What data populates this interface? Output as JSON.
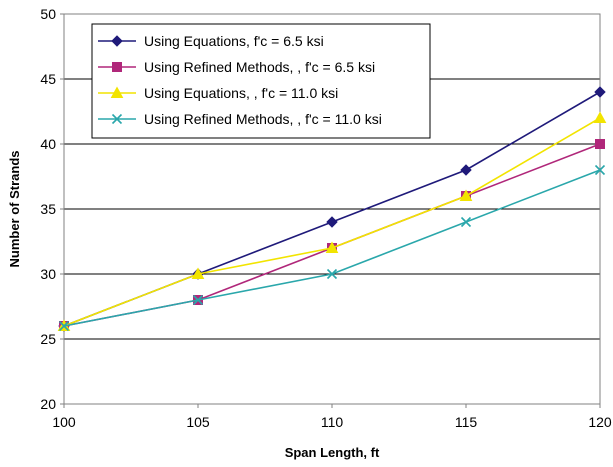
{
  "chart_data": {
    "type": "line",
    "title": "",
    "xlabel": "Span Length, ft",
    "ylabel": "Number of Strands",
    "x": [
      100,
      105,
      110,
      115,
      120
    ],
    "xlim": [
      100,
      120
    ],
    "ylim": [
      20,
      50
    ],
    "x_ticks": [
      100,
      105,
      110,
      115,
      120
    ],
    "y_ticks": [
      20,
      25,
      30,
      35,
      40,
      45,
      50
    ],
    "grid": "horizontal",
    "legend_position": "top-left",
    "series": [
      {
        "name": "Using Equations, f'c = 6.5 ksi",
        "values": [
          26,
          30,
          34,
          38,
          44
        ],
        "color": "#1f1a7a",
        "marker": "diamond"
      },
      {
        "name": "Using Refined Methods, , f'c = 6.5 ksi",
        "values": [
          26,
          28,
          32,
          36,
          40
        ],
        "color": "#b0277a",
        "marker": "square"
      },
      {
        "name": "Using Equations, , f'c = 11.0 ksi",
        "values": [
          26,
          30,
          32,
          36,
          42
        ],
        "color": "#f2e400",
        "marker": "triangle"
      },
      {
        "name": "Using Refined Methods, , f'c = 11.0 ksi",
        "values": [
          26,
          28,
          30,
          34,
          38
        ],
        "color": "#2aa7ab",
        "marker": "x"
      }
    ]
  }
}
